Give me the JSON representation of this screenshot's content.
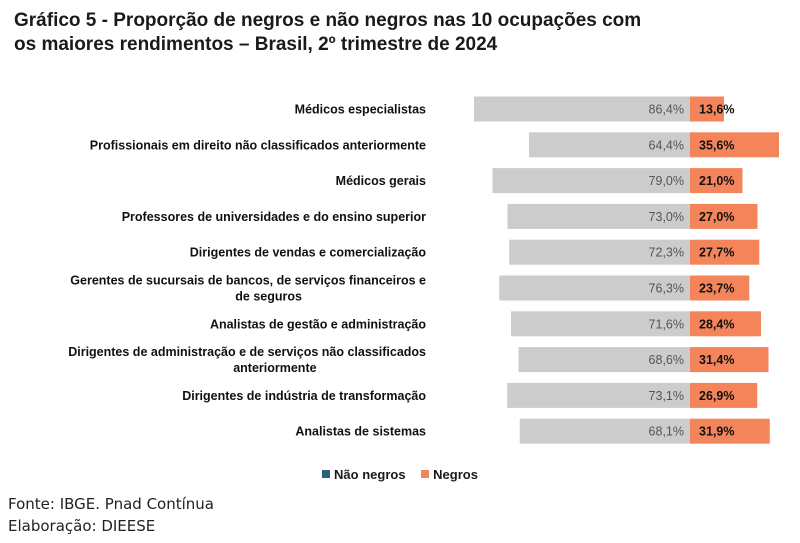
{
  "title": {
    "line1": "Gráfico 5 - Proporção de negros e não negros nas 10 ocupações com",
    "line2": "os maiores rendimentos – Brasil, 2º trimestre de 2024"
  },
  "colors": {
    "nao_negros_bar": "#cccccc",
    "negros_bar": "#f4845a",
    "nao_negros_legend": "#2e5f7f",
    "negros_legend": "#f4845a"
  },
  "legend": {
    "nao_negros": "Não negros",
    "negros": "Negros"
  },
  "footer": {
    "fonte": "Fonte: IBGE. Pnad Contínua",
    "elaboracao": "Elaboração: DIEESE"
  },
  "chart_data": {
    "type": "bar",
    "orientation": "horizontal-diverging",
    "categories": [
      [
        "Médicos especialistas"
      ],
      [
        "Profissionais em direito não classificados anteriormente"
      ],
      [
        "Médicos gerais"
      ],
      [
        "Professores de universidades e do ensino superior"
      ],
      [
        "Dirigentes de vendas e  comercialização"
      ],
      [
        "Gerentes de sucursais de bancos, de serviços financeiros e",
        "de seguros"
      ],
      [
        "Analistas de gestão e administração"
      ],
      [
        "Dirigentes de administração e de serviços não classificados",
        "anteriormente"
      ],
      [
        "Dirigentes de indústria de transformação"
      ],
      [
        "Analistas de sistemas"
      ]
    ],
    "series": [
      {
        "name": "Não negros",
        "values": [
          86.4,
          64.4,
          79.0,
          73.0,
          72.3,
          76.3,
          71.6,
          68.6,
          73.1,
          68.1
        ],
        "labels": [
          "86,4%",
          "64,4%",
          "79,0%",
          "73,0%",
          "72,3%",
          "76,3%",
          "71,6%",
          "68,6%",
          "73,1%",
          "68,1%"
        ]
      },
      {
        "name": "Negros",
        "values": [
          13.6,
          35.6,
          21.0,
          27.0,
          27.7,
          23.7,
          28.4,
          31.4,
          26.9,
          31.9
        ],
        "labels": [
          "13,6%",
          "35,6%",
          "21,0%",
          "27,0%",
          "27,7%",
          "23,7%",
          "28,4%",
          "31,4%",
          "26,9%",
          "31,9%"
        ]
      }
    ],
    "legend_position": "bottom"
  }
}
